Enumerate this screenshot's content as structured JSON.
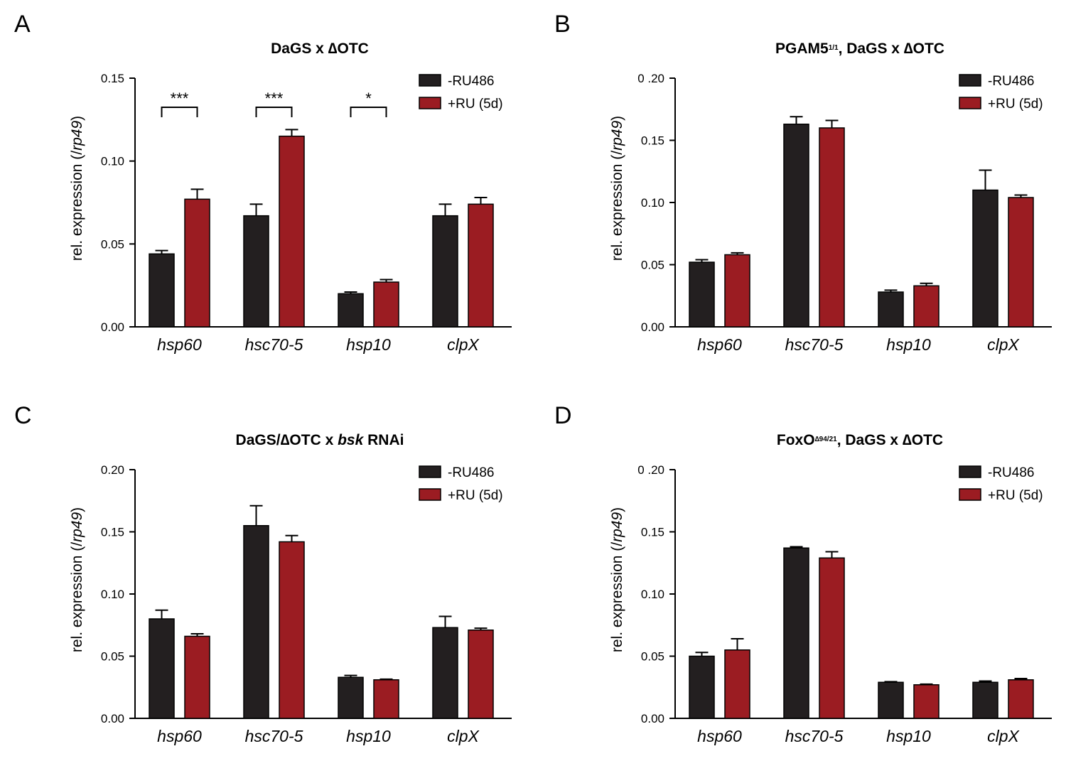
{
  "legend": {
    "items": [
      {
        "label": "-RU486",
        "color": "#231f20"
      },
      {
        "label": "+RU (5d)",
        "color": "#9b1c22"
      }
    ]
  },
  "colors": {
    "minus_ru": "#231f20",
    "plus_ru": "#9b1c22",
    "axis": "#000000"
  },
  "chart_data": [
    {
      "panel_letter": "A",
      "type": "bar",
      "title": "DaGS x ∆OTC",
      "title_parts": [
        {
          "text": "DaGS x ∆OTC"
        }
      ],
      "ylabel_parts": [
        {
          "text": "rel. expression (/"
        },
        {
          "text": "rp49",
          "italic": true
        },
        {
          "text": ")"
        }
      ],
      "categories": [
        "hsp60",
        "hsc70-5",
        "hsp10",
        "clpX"
      ],
      "ylim": [
        0,
        0.15
      ],
      "yticks": [
        0.0,
        0.05,
        0.1,
        0.15
      ],
      "ytick_labels": [
        "0.00",
        "0.05",
        "0.10",
        "0.15"
      ],
      "series": [
        {
          "name": "-RU486",
          "values": [
            0.044,
            0.067,
            0.02,
            0.067
          ],
          "errors": [
            0.002,
            0.007,
            0.001,
            0.007
          ]
        },
        {
          "name": "+RU (5d)",
          "values": [
            0.077,
            0.115,
            0.027,
            0.074
          ],
          "errors": [
            0.006,
            0.004,
            0.0015,
            0.004
          ]
        }
      ],
      "significance": [
        {
          "category": "hsp60",
          "label": "***"
        },
        {
          "category": "hsc70-5",
          "label": "***"
        },
        {
          "category": "hsp10",
          "label": "*"
        }
      ]
    },
    {
      "panel_letter": "B",
      "type": "bar",
      "title": "PGAM5¹⁄¹, DaGS x ∆OTC",
      "title_parts": [
        {
          "text": "PGAM5"
        },
        {
          "text": "1/1",
          "sup": true
        },
        {
          "text": ", DaGS x ∆OTC"
        }
      ],
      "ylabel_parts": [
        {
          "text": "rel. expression (/"
        },
        {
          "text": "rp49",
          "italic": true
        },
        {
          "text": ")"
        }
      ],
      "categories": [
        "hsp60",
        "hsc70-5",
        "hsp10",
        "clpX"
      ],
      "ylim": [
        0,
        0.2
      ],
      "yticks": [
        0.0,
        0.05,
        0.1,
        0.15,
        0.2
      ],
      "ytick_labels": [
        "0.00",
        "0.05",
        "0.10",
        "0.15",
        "0 .20"
      ],
      "series": [
        {
          "name": "-RU486",
          "values": [
            0.052,
            0.163,
            0.028,
            0.11
          ],
          "errors": [
            0.002,
            0.006,
            0.0015,
            0.016
          ]
        },
        {
          "name": "+RU (5d)",
          "values": [
            0.058,
            0.16,
            0.033,
            0.104
          ],
          "errors": [
            0.0015,
            0.006,
            0.002,
            0.002
          ]
        }
      ],
      "significance": []
    },
    {
      "panel_letter": "C",
      "type": "bar",
      "title": "DaGS/∆OTC x bsk RNAi",
      "title_parts": [
        {
          "text": "DaGS/∆OTC x "
        },
        {
          "text": "bsk",
          "italic": true
        },
        {
          "text": " RNAi"
        }
      ],
      "ylabel_parts": [
        {
          "text": "rel. expression (/"
        },
        {
          "text": "rp49",
          "italic": true
        },
        {
          "text": ")"
        }
      ],
      "categories": [
        "hsp60",
        "hsc70-5",
        "hsp10",
        "clpX"
      ],
      "ylim": [
        0,
        0.2
      ],
      "yticks": [
        0.0,
        0.05,
        0.1,
        0.15,
        0.2
      ],
      "ytick_labels": [
        "0.00",
        "0.05",
        "0.10",
        "0.15",
        "0.20"
      ],
      "series": [
        {
          "name": "-RU486",
          "values": [
            0.08,
            0.155,
            0.033,
            0.073
          ],
          "errors": [
            0.007,
            0.016,
            0.0015,
            0.009
          ]
        },
        {
          "name": "+RU (5d)",
          "values": [
            0.066,
            0.142,
            0.031,
            0.071
          ],
          "errors": [
            0.002,
            0.005,
            0.0005,
            0.0015
          ]
        }
      ],
      "significance": []
    },
    {
      "panel_letter": "D",
      "type": "bar",
      "title": "FoxO∆⁹⁴⁄²¹, DaGS x ∆OTC",
      "title_parts": [
        {
          "text": "FoxO"
        },
        {
          "text": "∆94/21",
          "sup": true
        },
        {
          "text": ", DaGS x ∆OTC"
        }
      ],
      "ylabel_parts": [
        {
          "text": "rel. expression (/"
        },
        {
          "text": "rp49",
          "italic": true
        },
        {
          "text": ")"
        }
      ],
      "categories": [
        "hsp60",
        "hsc70-5",
        "hsp10",
        "clpX"
      ],
      "ylim": [
        0,
        0.2
      ],
      "yticks": [
        0.0,
        0.05,
        0.1,
        0.15,
        0.2
      ],
      "ytick_labels": [
        "0.00",
        "0.05",
        "0.10",
        "0.15",
        "0 .20"
      ],
      "series": [
        {
          "name": "-RU486",
          "values": [
            0.05,
            0.137,
            0.029,
            0.029
          ],
          "errors": [
            0.003,
            0.001,
            0.0005,
            0.001
          ]
        },
        {
          "name": "+RU (5d)",
          "values": [
            0.055,
            0.129,
            0.027,
            0.031
          ],
          "errors": [
            0.009,
            0.005,
            0.0005,
            0.001
          ]
        }
      ],
      "significance": []
    }
  ]
}
